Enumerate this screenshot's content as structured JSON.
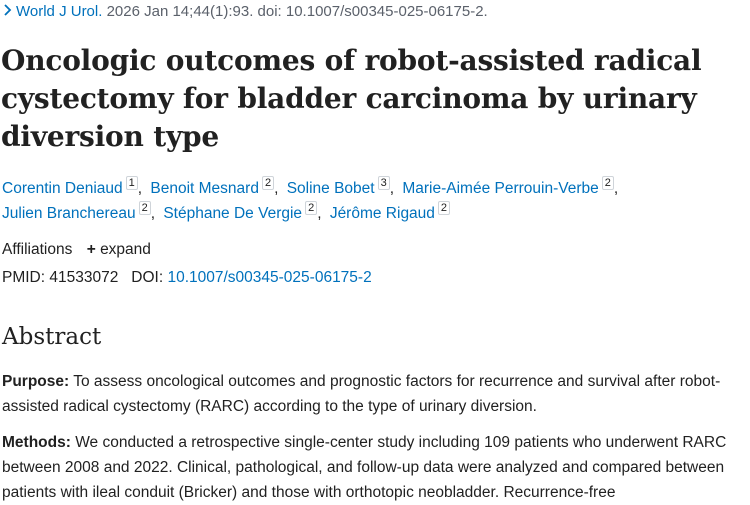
{
  "citation": {
    "journal": "World J Urol.",
    "details": "2026 Jan 14;44(1):93. doi: 10.1007/s00345-025-06175-2."
  },
  "title": "Oncologic outcomes of robot-assisted radical cystectomy for bladder carcinoma by urinary diversion type",
  "authors": [
    {
      "name": "Corentin Deniaud",
      "sup": "1"
    },
    {
      "name": "Benoit Mesnard",
      "sup": "2"
    },
    {
      "name": "Soline Bobet",
      "sup": "3"
    },
    {
      "name": "Marie-Aimée Perrouin-Verbe",
      "sup": "2"
    },
    {
      "name": "Julien Branchereau",
      "sup": "2"
    },
    {
      "name": "Stéphane De Vergie",
      "sup": "2"
    },
    {
      "name": "Jérôme Rigaud",
      "sup": "2"
    }
  ],
  "affiliations": {
    "label": "Affiliations",
    "expand": "expand"
  },
  "ids": {
    "pmid_label": "PMID:",
    "pmid": "41533072",
    "doi_label": "DOI:",
    "doi": "10.1007/s00345-025-06175-2"
  },
  "abstract": {
    "heading": "Abstract",
    "purpose_label": "Purpose:",
    "purpose_text": "To assess oncological outcomes and prognostic factors for recurrence and survival after robot-assisted radical cystectomy (RARC) according to the type of urinary diversion.",
    "methods_label": "Methods:",
    "methods_text": "We conducted a retrospective single-center study including 109 patients who underwent RARC between 2008 and 2022. Clinical, pathological, and follow-up data were analyzed and compared between patients with ileal conduit (Bricker) and those with orthotopic neobladder. Recurrence-free"
  }
}
